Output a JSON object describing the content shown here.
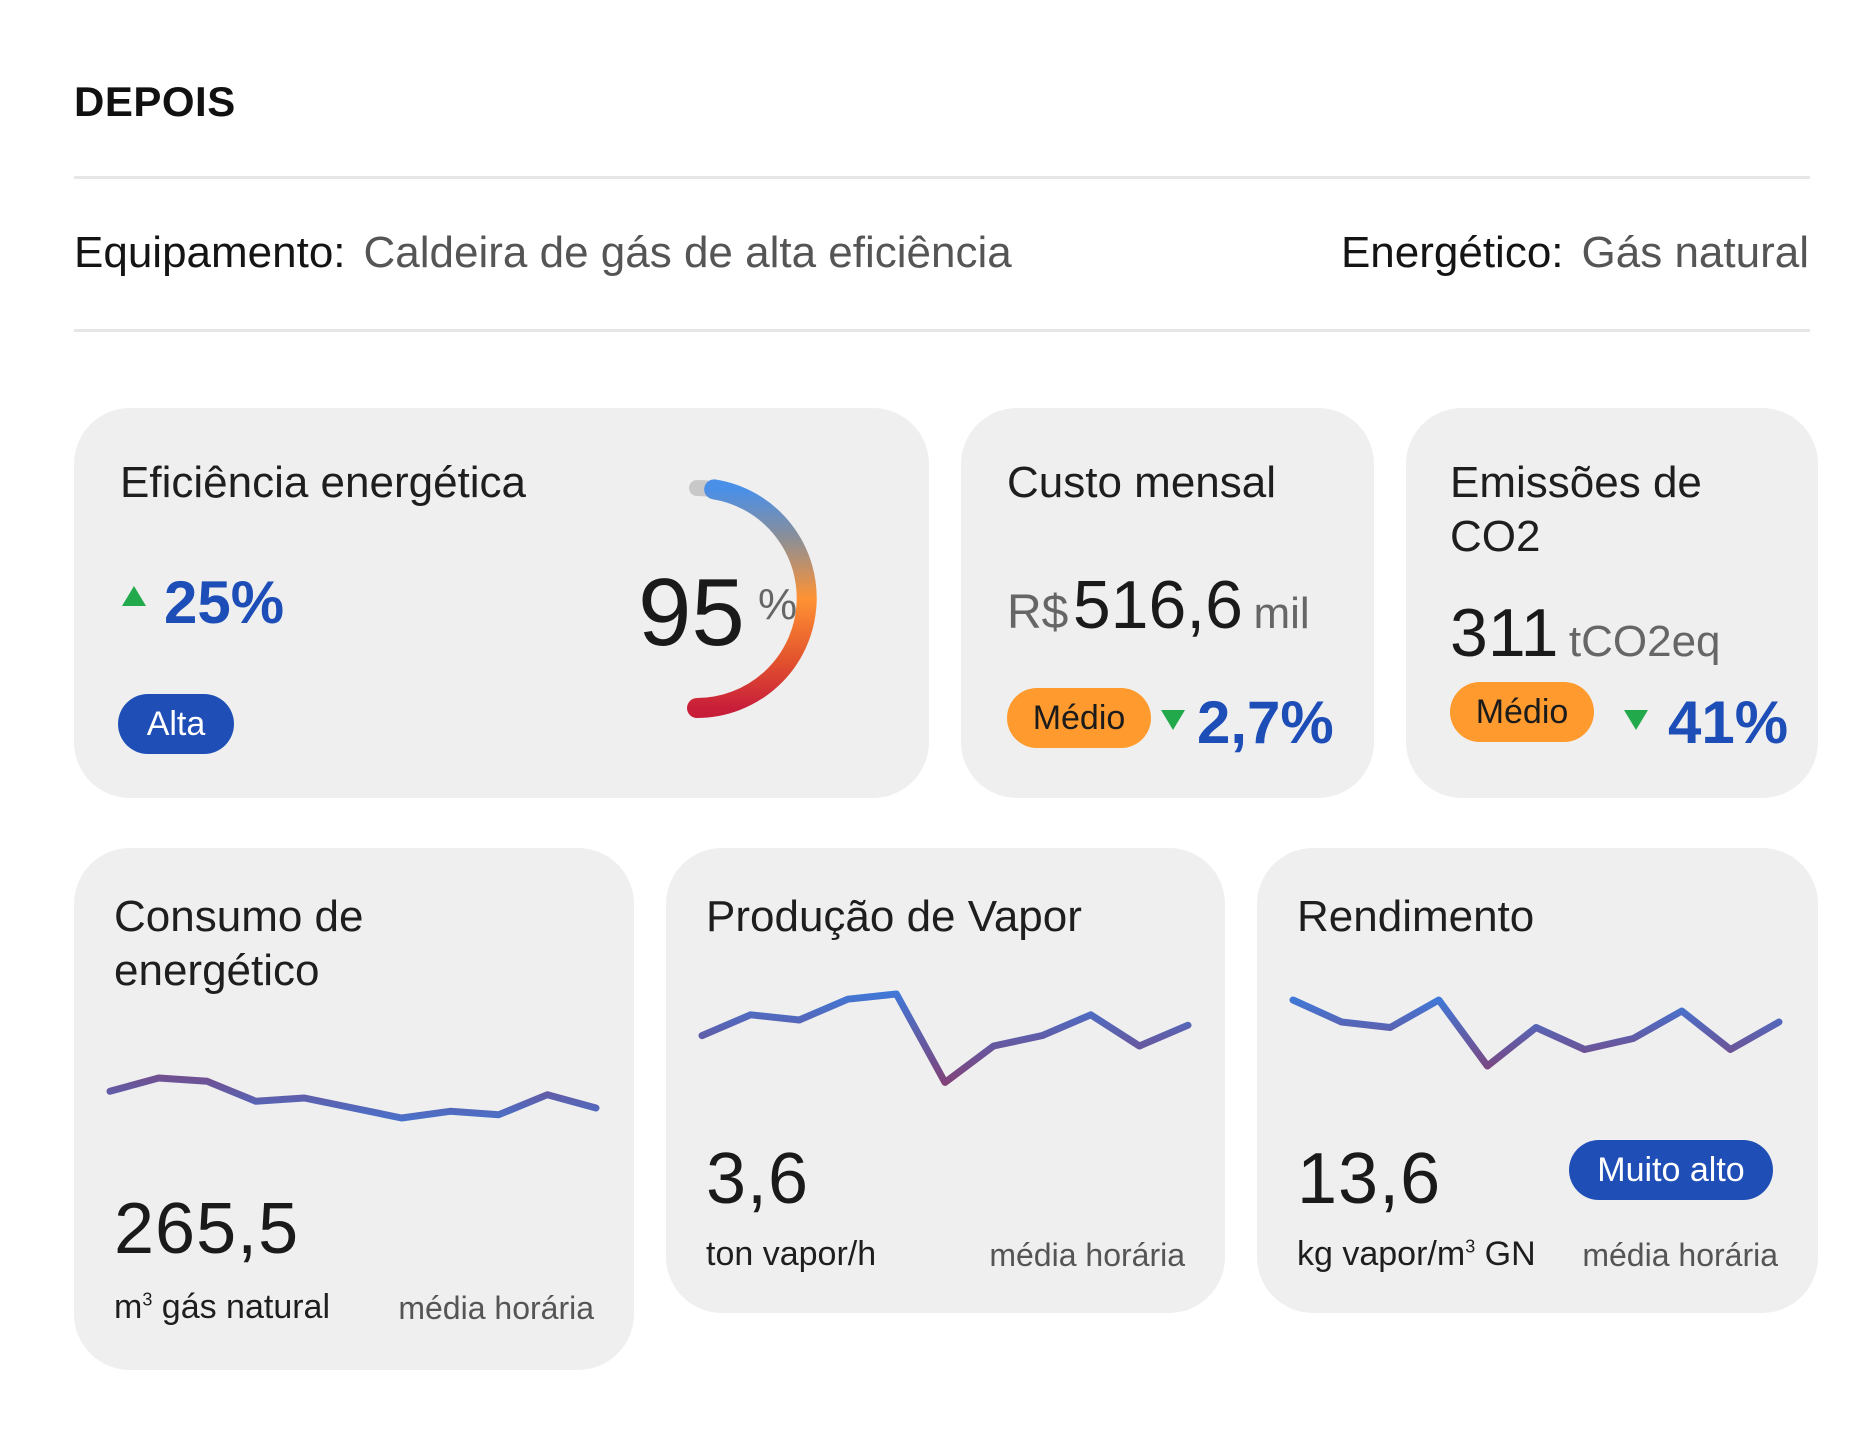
{
  "header": {
    "title": "DEPOIS",
    "equipment_label": "Equipamento:",
    "equipment_value": "Caldeira de gás de alta eficiência",
    "energy_label": "Energético:",
    "energy_value": "Gás natural"
  },
  "efficiency": {
    "title": "Eficiência energética",
    "delta": "25%",
    "delta_direction": "up",
    "badge": "Alta",
    "value": "95",
    "unit": "%",
    "gauge_fraction": 0.95
  },
  "cost": {
    "title": "Custo mensal",
    "currency": "R$",
    "value": "516,6",
    "unit": "mil",
    "badge": "Médio",
    "delta": "2,7%",
    "delta_direction": "down"
  },
  "emissions": {
    "title_line1": "Emissões de",
    "title_line2": "CO2",
    "value": "311",
    "unit": "tCO2eq",
    "badge": "Médio",
    "delta": "41%",
    "delta_direction": "down"
  },
  "consumption": {
    "title_line1": "Consumo de",
    "title_line2": "energético",
    "value": "265,5",
    "unit_prefix": "m",
    "unit_sup": "3",
    "unit_suffix": " gás natural",
    "note": "média horária"
  },
  "steam": {
    "title": "Produção de Vapor",
    "value": "3,6",
    "unit": "ton vapor/h",
    "note": "média horária"
  },
  "yield": {
    "title": "Rendimento",
    "value": "13,6",
    "badge": "Muito alto",
    "unit_prefix": "kg vapor/m",
    "unit_sup": "3",
    "unit_suffix": " GN",
    "note": "média horária"
  },
  "colors": {
    "accent_blue": "#1f4eb6",
    "badge_orange": "#ff9b2e",
    "delta_green": "#22a94b",
    "line_blue": "#2f86f0",
    "line_purple": "#8b3a6a"
  },
  "chart_data": [
    {
      "type": "line",
      "title": "Consumo de energético",
      "values": [
        53,
        49,
        50,
        56,
        55,
        58,
        61,
        59,
        60,
        54,
        58
      ]
    },
    {
      "type": "line",
      "title": "Produção de Vapor",
      "values": [
        48,
        44,
        45,
        41,
        40,
        57,
        50,
        48,
        44,
        50,
        46
      ]
    },
    {
      "type": "line",
      "title": "Rendimento",
      "values": [
        44,
        48,
        49,
        44,
        56,
        49,
        53,
        51,
        46,
        53,
        48
      ]
    }
  ]
}
